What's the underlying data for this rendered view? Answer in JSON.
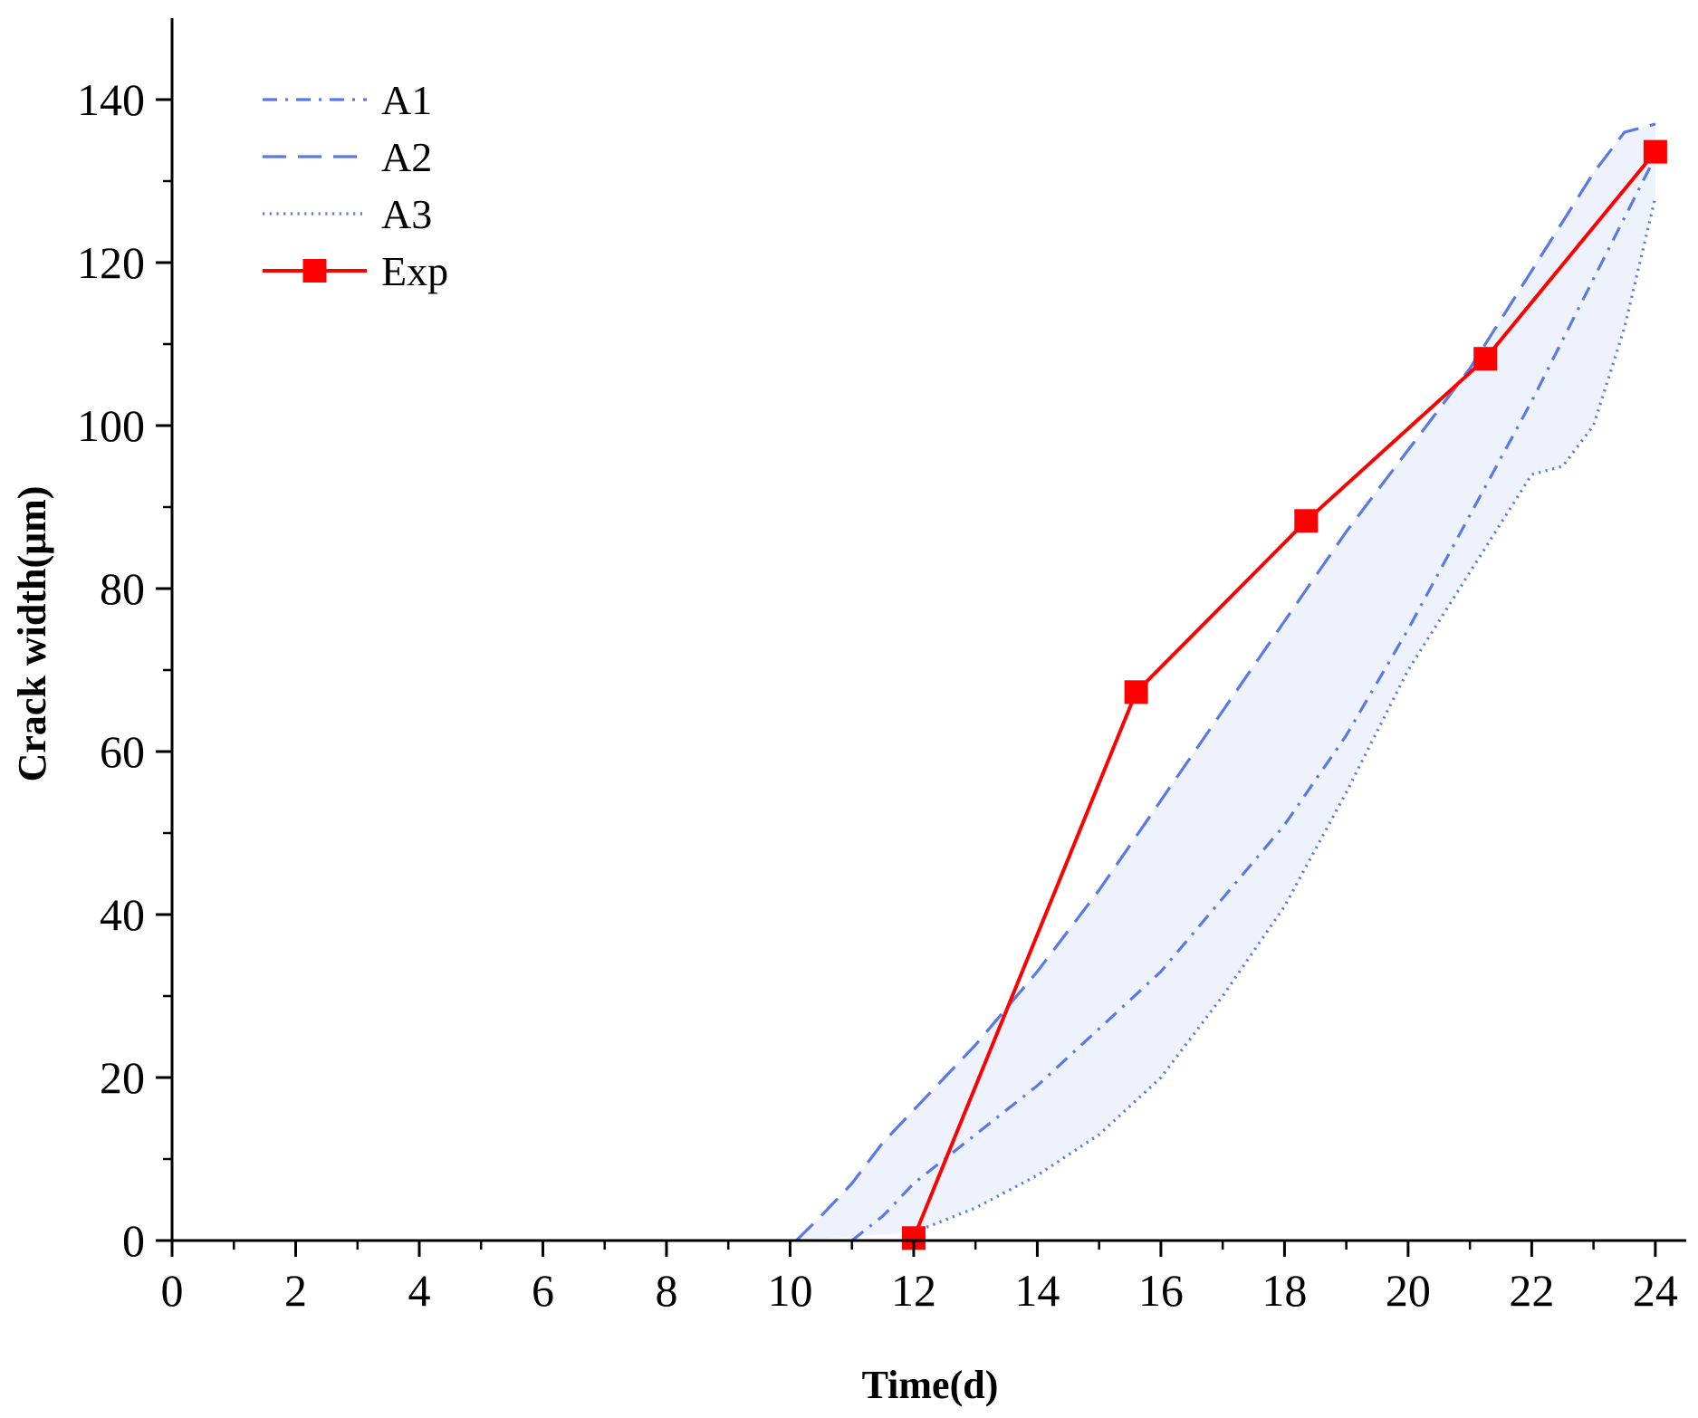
{
  "chart_data": {
    "type": "line",
    "title": "",
    "xlabel": "Time(d)",
    "ylabel": "Crack width(μm)",
    "xlim": [
      0,
      24.5
    ],
    "ylim": [
      0,
      150
    ],
    "x_ticks": [
      0,
      2,
      4,
      6,
      8,
      10,
      12,
      14,
      16,
      18,
      20,
      22,
      24
    ],
    "x_tick_labels": [
      "0",
      "2",
      "4",
      "6",
      "8",
      "10",
      "12",
      "14",
      "16",
      "18",
      "20",
      "22",
      "24"
    ],
    "y_ticks": [
      0,
      20,
      40,
      60,
      80,
      100,
      120,
      140
    ],
    "y_tick_labels": [
      "0",
      "20",
      "40",
      "60",
      "80",
      "100",
      "120",
      "140"
    ],
    "legend_position": "top-left",
    "band": {
      "description": "shaded region between A2 (upper) and A3 (lower)",
      "color": "#eef2fc"
    },
    "series": [
      {
        "name": "A1",
        "style": "dash-dot",
        "color": "#5a78e6",
        "x": [
          11.0,
          11.5,
          12.0,
          13.0,
          14.0,
          15.0,
          16.0,
          17.0,
          18.0,
          19.0,
          20.0,
          21.0,
          22.0,
          23.0,
          24.0
        ],
        "y": [
          0,
          3,
          7,
          13,
          19,
          26,
          33,
          42,
          51,
          62,
          75,
          89,
          103,
          118,
          133
        ]
      },
      {
        "name": "A2",
        "style": "dashed",
        "color": "#5a78e6",
        "x": [
          10.1,
          10.5,
          11.0,
          11.5,
          12.0,
          13.0,
          14.0,
          15.0,
          16.0,
          17.0,
          18.0,
          19.0,
          20.0,
          21.0,
          22.0,
          23.0,
          23.5,
          24.0
        ],
        "y": [
          0,
          3,
          7,
          12,
          16,
          24,
          33,
          43,
          54,
          65,
          76,
          87,
          97,
          107,
          119,
          131,
          136,
          137
        ]
      },
      {
        "name": "A3",
        "style": "dotted",
        "color": "#5a78e6",
        "x": [
          12.0,
          13.0,
          14.0,
          15.0,
          16.0,
          17.0,
          18.0,
          19.0,
          20.0,
          21.0,
          21.5,
          22.0,
          22.5,
          23.0,
          23.5,
          24.0
        ],
        "y": [
          1,
          4,
          8,
          13,
          20,
          30,
          41,
          55,
          70,
          82,
          88,
          94,
          95,
          100,
          112,
          128
        ]
      },
      {
        "name": "Exp",
        "style": "solid-square-markers",
        "color": "#ff0000",
        "x": [
          12.0,
          15.6,
          18.35,
          21.25,
          24.0
        ],
        "y": [
          0.3,
          67.3,
          88.3,
          108.2,
          133.6
        ]
      }
    ]
  }
}
